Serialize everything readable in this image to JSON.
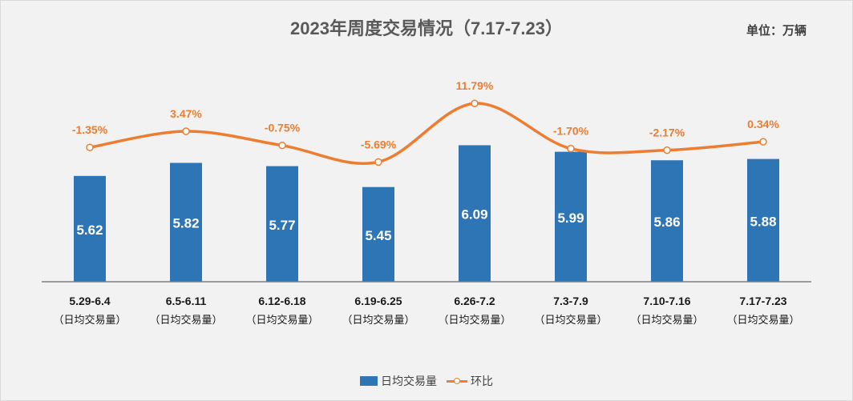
{
  "chart_data": {
    "type": "bar",
    "title": "2023年周度交易情况（7.17-7.23）",
    "unit_label": "单位：万辆",
    "categories": [
      "5.29-6.4",
      "6.5-6.11",
      "6.12-6.18",
      "6.19-6.25",
      "6.26-7.2",
      "7.3-7.9",
      "7.10-7.16",
      "7.17-7.23"
    ],
    "category_sublabel": "（日均交易量）",
    "series": [
      {
        "name": "日均交易量",
        "values": [
          5.62,
          5.82,
          5.77,
          5.45,
          6.09,
          5.99,
          5.86,
          5.88
        ],
        "labels": [
          "5.62",
          "5.82",
          "5.77",
          "5.45",
          "6.09",
          "5.99",
          "5.86",
          "5.88"
        ],
        "color": "#2e75b6"
      },
      {
        "name": "环比",
        "type": "line",
        "values": [
          -1.35,
          3.47,
          -0.75,
          -5.69,
          11.79,
          -1.7,
          -2.17,
          0.34
        ],
        "labels": [
          "-1.35%",
          "3.47%",
          "-0.75%",
          "-5.69%",
          "11.79%",
          "-1.70%",
          "-2.17%",
          "0.34%"
        ],
        "color": "#ed7d31"
      }
    ],
    "legend": "bottom-center",
    "grid": false
  }
}
